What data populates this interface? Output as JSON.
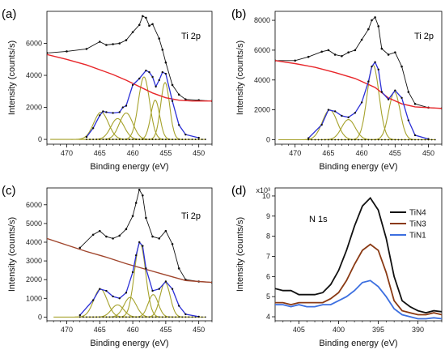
{
  "chart_data": [
    {
      "type": "line",
      "panel_letter": "(a)",
      "annotation": "Ti 2p",
      "xlabel": "Binding energy (eV)",
      "ylabel": "Intensity (counts/s)",
      "xlim": [
        473,
        448
      ],
      "ylim": [
        -300,
        8000
      ],
      "x_ticks": [
        470,
        465,
        460,
        455,
        450
      ],
      "y_ticks": [
        0,
        2000,
        4000,
        6000
      ],
      "x_tick_labels": [
        "470",
        "465",
        "460",
        "455",
        "450"
      ],
      "y_tick_labels": [
        "0",
        "2000",
        "4000",
        "6000"
      ],
      "colors": {
        "raw": "#111111",
        "background": "#e8262a",
        "envelope": "#2b2fd6",
        "component": "#a6a22c"
      },
      "series": [
        {
          "role": "raw",
          "x": [
            473,
            470,
            467,
            465,
            464,
            463,
            462,
            461,
            460,
            459,
            458.5,
            458,
            457.5,
            457,
            456,
            455.5,
            455,
            454,
            453,
            452,
            450,
            448
          ],
          "values": [
            5400,
            5500,
            5650,
            6100,
            5900,
            5950,
            6000,
            6200,
            6700,
            7150,
            7700,
            7600,
            7100,
            7200,
            6300,
            5600,
            4800,
            3400,
            2800,
            2500,
            2450,
            2400
          ]
        },
        {
          "role": "background",
          "x": [
            473,
            470,
            467,
            465,
            463,
            461,
            459,
            457,
            455,
            453,
            451,
            448
          ],
          "values": [
            5300,
            5000,
            4650,
            4350,
            4050,
            3700,
            3300,
            2900,
            2600,
            2450,
            2400,
            2400
          ]
        },
        {
          "role": "fit",
          "x": [
            467,
            466,
            465,
            464.5,
            464,
            463,
            462,
            461.5,
            461,
            460,
            459,
            458,
            457.5,
            457,
            456.5,
            456,
            455.5,
            455,
            454,
            453,
            452,
            450
          ],
          "values": [
            150,
            700,
            1500,
            1750,
            1700,
            1650,
            1700,
            2000,
            2100,
            3400,
            3800,
            4300,
            4200,
            3900,
            3300,
            3700,
            4200,
            4100,
            2400,
            900,
            300,
            100
          ]
        },
        {
          "role": "component",
          "center": 464.8,
          "height": 1700,
          "fwhm": 2.6
        },
        {
          "role": "component",
          "center": 462.3,
          "height": 1300,
          "fwhm": 2.4
        },
        {
          "role": "component",
          "center": 461.0,
          "height": 1650,
          "fwhm": 2.4
        },
        {
          "role": "component",
          "center": 458.3,
          "height": 3900,
          "fwhm": 2.0
        },
        {
          "role": "component",
          "center": 456.6,
          "height": 2450,
          "fwhm": 1.6
        },
        {
          "role": "component",
          "center": 455.1,
          "height": 3550,
          "fwhm": 1.6
        }
      ]
    },
    {
      "type": "line",
      "panel_letter": "(b)",
      "annotation": "Ti 2p",
      "xlabel": "Binding energy (eV)",
      "ylabel": "Intensity (counts/s)",
      "xlim": [
        473,
        448
      ],
      "ylim": [
        -300,
        8600
      ],
      "x_ticks": [
        470,
        465,
        460,
        455,
        450
      ],
      "y_ticks": [
        0,
        2000,
        4000,
        6000,
        8000
      ],
      "x_tick_labels": [
        "470",
        "465",
        "460",
        "455",
        "450"
      ],
      "y_tick_labels": [
        "0",
        "2000",
        "4000",
        "6000",
        "8000"
      ],
      "colors": {
        "raw": "#111111",
        "background": "#e8262a",
        "envelope": "#2b2fd6",
        "component": "#a6a22c"
      },
      "series": [
        {
          "role": "raw",
          "x": [
            473,
            470,
            468,
            466,
            465,
            464,
            463,
            462,
            461,
            460,
            459,
            458.5,
            458,
            457.5,
            457,
            456,
            455,
            454,
            453,
            452,
            450,
            448
          ],
          "values": [
            5300,
            5300,
            5550,
            5900,
            6000,
            5700,
            5600,
            5850,
            6000,
            6700,
            7400,
            8000,
            8200,
            7600,
            6100,
            5700,
            5850,
            4900,
            3200,
            2400,
            2150,
            2100
          ]
        },
        {
          "role": "background",
          "x": [
            473,
            470,
            467,
            464,
            461,
            458,
            456,
            454,
            452,
            450,
            448
          ],
          "values": [
            5300,
            5100,
            4850,
            4500,
            4100,
            3500,
            2800,
            2400,
            2200,
            2150,
            2100
          ]
        },
        {
          "role": "fit",
          "x": [
            468,
            466,
            465,
            464,
            463,
            462,
            461,
            460,
            459,
            458.5,
            458,
            457.5,
            457,
            456,
            455,
            454,
            453,
            452,
            450
          ],
          "values": [
            100,
            1000,
            2000,
            1900,
            1600,
            1500,
            1800,
            2500,
            3900,
            4900,
            5200,
            4700,
            3200,
            2700,
            3300,
            2800,
            1300,
            300,
            50
          ]
        },
        {
          "role": "component",
          "center": 464.8,
          "height": 2000,
          "fwhm": 2.6
        },
        {
          "role": "component",
          "center": 462.0,
          "height": 1350,
          "fwhm": 2.4
        },
        {
          "role": "component",
          "center": 458.3,
          "height": 5000,
          "fwhm": 2.1
        },
        {
          "role": "component",
          "center": 455.1,
          "height": 3200,
          "fwhm": 2.0
        }
      ]
    },
    {
      "type": "line",
      "panel_letter": "(c)",
      "annotation": "Ti 2p",
      "xlabel": "Binding energy (eV)",
      "ylabel": "Intensity (counts/s)",
      "xlim": [
        473,
        448
      ],
      "ylim": [
        -200,
        6900
      ],
      "x_ticks": [
        470,
        465,
        460,
        455,
        450
      ],
      "y_ticks": [
        0,
        1000,
        2000,
        3000,
        4000,
        5000,
        6000
      ],
      "x_tick_labels": [
        "470",
        "465",
        "460",
        "455",
        "450"
      ],
      "y_tick_labels": [
        "0",
        "1000",
        "2000",
        "3000",
        "4000",
        "5000",
        "6000"
      ],
      "colors": {
        "raw": "#111111",
        "background": "#a0452c",
        "envelope": "#2b2fd6",
        "component": "#a6a22c"
      },
      "series": [
        {
          "role": "raw",
          "x": [
            468,
            466,
            465,
            464,
            463,
            462,
            461,
            460,
            459.5,
            459,
            458.5,
            458,
            457,
            456,
            455,
            454,
            453,
            452,
            450,
            448
          ],
          "values": [
            3700,
            4400,
            4600,
            4300,
            4200,
            4350,
            4700,
            5400,
            6100,
            6800,
            6500,
            5300,
            4300,
            4200,
            4600,
            3900,
            2600,
            2000,
            1900,
            1850
          ]
        },
        {
          "role": "background",
          "x": [
            473,
            470,
            467,
            464,
            461,
            458,
            455,
            452,
            450,
            448
          ],
          "values": [
            4200,
            3850,
            3500,
            3200,
            2850,
            2550,
            2250,
            1950,
            1900,
            1850
          ]
        },
        {
          "role": "fit",
          "x": [
            468,
            466,
            465,
            464,
            463,
            462,
            461,
            460,
            459.5,
            459,
            458.5,
            458,
            457,
            456,
            455,
            454,
            453,
            452,
            450
          ],
          "values": [
            100,
            900,
            1500,
            1400,
            1100,
            1000,
            1300,
            2400,
            3300,
            4000,
            3800,
            2600,
            1400,
            1500,
            1900,
            1500,
            600,
            150,
            20
          ]
        },
        {
          "role": "component",
          "center": 464.9,
          "height": 1500,
          "fwhm": 2.4
        },
        {
          "role": "component",
          "center": 462.3,
          "height": 650,
          "fwhm": 2.2
        },
        {
          "role": "component",
          "center": 460.4,
          "height": 1050,
          "fwhm": 2.2
        },
        {
          "role": "component",
          "center": 458.9,
          "height": 3950,
          "fwhm": 2.0
        },
        {
          "role": "component",
          "center": 456.9,
          "height": 1200,
          "fwhm": 1.8
        },
        {
          "role": "component",
          "center": 455.1,
          "height": 1850,
          "fwhm": 1.8
        }
      ]
    },
    {
      "type": "line",
      "panel_letter": "(d)",
      "annotation": "N 1s",
      "xlabel": "Binding energy (eV)",
      "ylabel": "Intensity (counts/s)",
      "y_multiplier": "x10³",
      "xlim": [
        408,
        387
      ],
      "ylim": [
        3.8,
        10.4
      ],
      "x_ticks": [
        405,
        400,
        395,
        390
      ],
      "y_ticks": [
        4,
        5,
        6,
        7,
        8,
        9,
        10
      ],
      "x_tick_labels": [
        "405",
        "400",
        "395",
        "390"
      ],
      "y_tick_labels": [
        "4",
        "5",
        "6",
        "7",
        "8",
        "9",
        "10"
      ],
      "legend": [
        "TiN4",
        "TiN3",
        "TiN1"
      ],
      "legend_position": "right",
      "x": [
        408,
        407,
        406,
        405,
        404,
        403,
        402,
        401,
        400,
        399,
        398,
        397,
        396,
        395,
        394,
        393,
        392,
        391,
        390,
        389,
        388,
        387
      ],
      "series": [
        {
          "name": "TiN4",
          "color": "#111111",
          "values": [
            5.4,
            5.3,
            5.3,
            5.1,
            5.1,
            5.1,
            5.2,
            5.6,
            6.3,
            7.3,
            8.5,
            9.5,
            9.9,
            9.3,
            7.9,
            6.0,
            4.8,
            4.5,
            4.3,
            4.2,
            4.3,
            4.25
          ]
        },
        {
          "name": "TiN3",
          "color": "#8a3a14",
          "values": [
            4.7,
            4.7,
            4.6,
            4.7,
            4.7,
            4.7,
            4.7,
            4.9,
            5.2,
            5.8,
            6.6,
            7.3,
            7.6,
            7.3,
            6.2,
            4.8,
            4.3,
            4.2,
            4.1,
            4.1,
            4.2,
            4.1
          ]
        },
        {
          "name": "TiN1",
          "color": "#3c6fe0",
          "values": [
            4.6,
            4.6,
            4.5,
            4.6,
            4.5,
            4.5,
            4.6,
            4.6,
            4.8,
            5.0,
            5.3,
            5.7,
            5.8,
            5.5,
            5.0,
            4.4,
            4.1,
            4.0,
            3.9,
            3.9,
            3.95,
            3.9
          ]
        }
      ]
    }
  ]
}
